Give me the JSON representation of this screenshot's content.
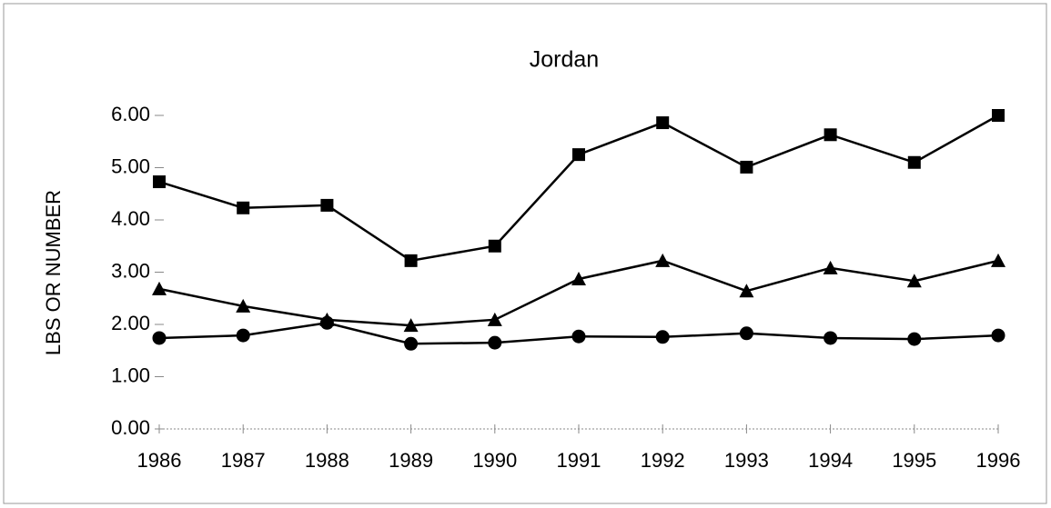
{
  "chart_data": {
    "type": "line",
    "title": "Jordan",
    "y_label": "LBS OR NUMBER",
    "x": [
      1986,
      1987,
      1988,
      1989,
      1990,
      1991,
      1992,
      1993,
      1994,
      1995,
      1996
    ],
    "xlim": [
      1986,
      1996
    ],
    "xticks": [
      1986,
      1987,
      1988,
      1989,
      1990,
      1991,
      1992,
      1993,
      1994,
      1995,
      1996
    ],
    "ylim": [
      0,
      6
    ],
    "yticks": [
      {
        "value": 0,
        "label": "0.00"
      },
      {
        "value": 1,
        "label": "1.00"
      },
      {
        "value": 2,
        "label": "2.00"
      },
      {
        "value": 3,
        "label": "3.00"
      },
      {
        "value": 4,
        "label": "4.00"
      },
      {
        "value": 5,
        "label": "5.00"
      },
      {
        "value": 6,
        "label": "6.00"
      }
    ],
    "series": [
      {
        "marker": "square",
        "color": "#000000",
        "values": [
          4.73,
          4.23,
          4.28,
          3.22,
          3.5,
          5.25,
          5.86,
          5.01,
          5.63,
          5.1,
          6.0
        ]
      },
      {
        "marker": "triangle",
        "color": "#000000",
        "values": [
          2.68,
          2.35,
          2.09,
          1.98,
          2.09,
          2.87,
          3.22,
          2.64,
          3.08,
          2.83,
          3.22
        ]
      },
      {
        "marker": "circle",
        "color": "#000000",
        "values": [
          1.74,
          1.79,
          2.03,
          1.63,
          1.65,
          1.77,
          1.76,
          1.83,
          1.74,
          1.72,
          1.79
        ]
      }
    ]
  }
}
